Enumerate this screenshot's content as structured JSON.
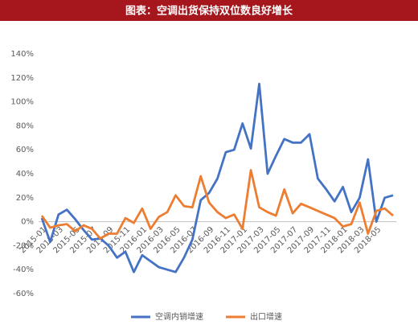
{
  "chart_data": {
    "type": "line",
    "title": "图表：空调出货保持双位数良好增长",
    "categories": [
      "2015-01",
      null,
      "2015-03",
      null,
      "2015-05",
      null,
      "2015-07",
      null,
      "2015-09",
      null,
      "2015-11",
      null,
      "2016-01",
      null,
      "2016-03",
      null,
      "2016-05",
      null,
      "2016-07",
      null,
      "2016-09",
      null,
      "2016-11",
      null,
      "2017-01",
      null,
      "2017-03",
      null,
      "2017-05",
      null,
      "2017-07",
      null,
      "2017-09",
      null,
      "2017-11",
      null,
      "2018-01",
      null,
      "2018-03",
      null,
      "2018-05",
      null,
      null
    ],
    "series": [
      {
        "name": "空调内销增速",
        "color": "#4472c4",
        "values": [
          3,
          -17,
          6,
          10,
          2,
          -7,
          -15,
          -14,
          -20,
          -30,
          -25,
          -42,
          -28,
          -33,
          -38,
          -40,
          -42,
          -30,
          -15,
          18,
          24,
          36,
          58,
          60,
          82,
          61,
          115,
          40,
          55,
          69,
          66,
          66,
          73,
          36,
          27,
          17,
          29,
          8,
          20,
          52,
          0,
          20,
          22
        ]
      },
      {
        "name": "出口增速",
        "color": "#ed7d31",
        "values": [
          5,
          -5,
          -3,
          -2,
          -8,
          -3,
          -6,
          -14,
          -10,
          -10,
          3,
          -1,
          11,
          -6,
          4,
          8,
          22,
          13,
          12,
          38,
          16,
          8,
          3,
          6,
          -6,
          43,
          12,
          8,
          5,
          27,
          7,
          15,
          12,
          9,
          6,
          3,
          -4,
          -2,
          16,
          -10,
          9,
          11,
          5
        ]
      }
    ],
    "ylim": [
      -60,
      140
    ],
    "yticks": [
      {
        "value": -60,
        "label": "-60%"
      },
      {
        "value": -40,
        "label": "-40%"
      },
      {
        "value": -20,
        "label": "-20%"
      },
      {
        "value": 0,
        "label": "0%"
      },
      {
        "value": 20,
        "label": "20%"
      },
      {
        "value": 40,
        "label": "40%"
      },
      {
        "value": 60,
        "label": "60%"
      },
      {
        "value": 80,
        "label": "80%"
      },
      {
        "value": 100,
        "label": "100%"
      },
      {
        "value": 120,
        "label": "120%"
      },
      {
        "value": 140,
        "label": "140%"
      }
    ],
    "grid": false
  }
}
